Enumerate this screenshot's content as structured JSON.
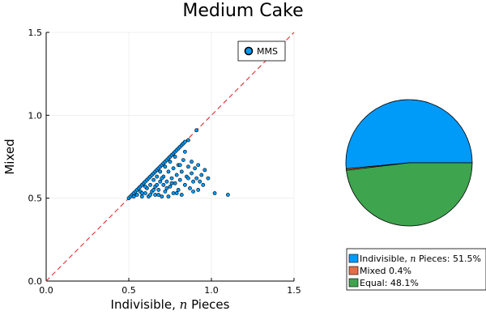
{
  "title": "Medium Cake",
  "chart_data": [
    {
      "type": "scatter",
      "xlabel": "Indivisible, n Pieces",
      "xlabel_prefix": "Indivisible,",
      "xlabel_math": "n",
      "xlabel_suffix": "Pieces",
      "ylabel": "Mixed",
      "xlim": [
        0,
        1.5
      ],
      "ylim": [
        0,
        1.5
      ],
      "xticks": [
        "0.0",
        "0.5",
        "1.0",
        "1.5"
      ],
      "yticks": [
        "0.0",
        "0.5",
        "1.0",
        "1.5"
      ],
      "grid": true,
      "legend_placement": "top-right",
      "series": [
        {
          "name": "MMS",
          "color": "#009af9",
          "points": [
            [
              0.5,
              0.5
            ],
            [
              0.51,
              0.51
            ],
            [
              0.52,
              0.52
            ],
            [
              0.53,
              0.53
            ],
            [
              0.54,
              0.54
            ],
            [
              0.55,
              0.55
            ],
            [
              0.56,
              0.56
            ],
            [
              0.57,
              0.57
            ],
            [
              0.58,
              0.58
            ],
            [
              0.59,
              0.59
            ],
            [
              0.6,
              0.6
            ],
            [
              0.61,
              0.61
            ],
            [
              0.62,
              0.62
            ],
            [
              0.63,
              0.63
            ],
            [
              0.64,
              0.64
            ],
            [
              0.65,
              0.65
            ],
            [
              0.66,
              0.66
            ],
            [
              0.67,
              0.67
            ],
            [
              0.68,
              0.68
            ],
            [
              0.69,
              0.69
            ],
            [
              0.7,
              0.7
            ],
            [
              0.71,
              0.71
            ],
            [
              0.72,
              0.72
            ],
            [
              0.73,
              0.73
            ],
            [
              0.74,
              0.74
            ],
            [
              0.75,
              0.75
            ],
            [
              0.76,
              0.76
            ],
            [
              0.77,
              0.77
            ],
            [
              0.78,
              0.78
            ],
            [
              0.79,
              0.79
            ],
            [
              0.8,
              0.8
            ],
            [
              0.81,
              0.81
            ],
            [
              0.82,
              0.82
            ],
            [
              0.83,
              0.83
            ],
            [
              0.84,
              0.84
            ],
            [
              0.86,
              0.85
            ],
            [
              0.91,
              0.91
            ],
            [
              0.53,
              0.51
            ],
            [
              0.55,
              0.52
            ],
            [
              0.57,
              0.54
            ],
            [
              0.58,
              0.51
            ],
            [
              0.6,
              0.53
            ],
            [
              0.61,
              0.56
            ],
            [
              0.62,
              0.51
            ],
            [
              0.63,
              0.58
            ],
            [
              0.64,
              0.54
            ],
            [
              0.65,
              0.61
            ],
            [
              0.66,
              0.52
            ],
            [
              0.66,
              0.57
            ],
            [
              0.67,
              0.63
            ],
            [
              0.68,
              0.55
            ],
            [
              0.69,
              0.6
            ],
            [
              0.69,
              0.66
            ],
            [
              0.7,
              0.51
            ],
            [
              0.71,
              0.58
            ],
            [
              0.71,
              0.63
            ],
            [
              0.72,
              0.69
            ],
            [
              0.72,
              0.54
            ],
            [
              0.73,
              0.6
            ],
            [
              0.74,
              0.66
            ],
            [
              0.74,
              0.51
            ],
            [
              0.75,
              0.57
            ],
            [
              0.75,
              0.72
            ],
            [
              0.76,
              0.62
            ],
            [
              0.77,
              0.53
            ],
            [
              0.77,
              0.68
            ],
            [
              0.78,
              0.59
            ],
            [
              0.78,
              0.75
            ],
            [
              0.79,
              0.64
            ],
            [
              0.8,
              0.55
            ],
            [
              0.8,
              0.7
            ],
            [
              0.81,
              0.61
            ],
            [
              0.82,
              0.66
            ],
            [
              0.82,
              0.52
            ],
            [
              0.83,
              0.73
            ],
            [
              0.84,
              0.58
            ],
            [
              0.84,
              0.78
            ],
            [
              0.85,
              0.63
            ],
            [
              0.86,
              0.69
            ],
            [
              0.87,
              0.56
            ],
            [
              0.88,
              0.65
            ],
            [
              0.88,
              0.72
            ],
            [
              0.89,
              0.6
            ],
            [
              0.9,
              0.68
            ],
            [
              0.91,
              0.62
            ],
            [
              0.92,
              0.55
            ],
            [
              0.92,
              0.7
            ],
            [
              0.94,
              0.64
            ],
            [
              0.95,
              0.58
            ],
            [
              0.96,
              0.67
            ],
            [
              0.98,
              0.62
            ],
            [
              1.02,
              0.53
            ],
            [
              1.1,
              0.52
            ],
            [
              0.58,
              0.53
            ],
            [
              0.6,
              0.57
            ],
            [
              0.63,
              0.52
            ],
            [
              0.65,
              0.55
            ],
            [
              0.67,
              0.58
            ],
            [
              0.68,
              0.52
            ],
            [
              0.7,
              0.62
            ],
            [
              0.73,
              0.56
            ],
            [
              0.76,
              0.59
            ],
            [
              0.79,
              0.53
            ],
            [
              0.81,
              0.7
            ],
            [
              0.86,
              0.62
            ],
            [
              0.89,
              0.54
            ],
            [
              0.93,
              0.6
            ]
          ]
        }
      ],
      "reference_line": {
        "style": "dashed",
        "color": "#e03030",
        "from": [
          0,
          0
        ],
        "to": [
          1.5,
          1.5
        ]
      }
    },
    {
      "type": "pie",
      "slices": [
        {
          "label": "Indivisible, n Pieces: 51.5%",
          "label_prefix": "Indivisible,",
          "label_math": "n",
          "label_suffix": "Pieces: 51.5%",
          "value": 51.5,
          "color": "#009af9"
        },
        {
          "label": "Mixed 0.4%",
          "value": 0.4,
          "color": "#e26f46"
        },
        {
          "label": "Equal: 48.1%",
          "value": 48.1,
          "color": "#3ea44e"
        }
      ],
      "legend_placement": "bottom"
    }
  ]
}
